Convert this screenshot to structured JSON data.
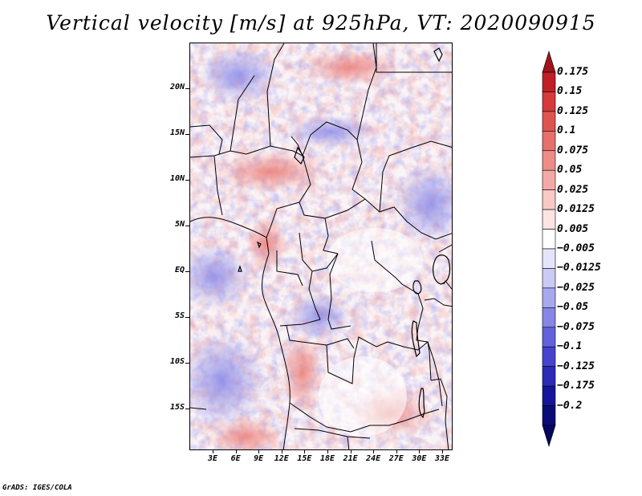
{
  "title": "Vertical velocity [m/s] at 925hPa, VT: 2020090915",
  "credit": "GrADS: IGES/COLA",
  "map": {
    "lat_labels": [
      "20N",
      "15N",
      "10N",
      "5N",
      "EQ",
      "5S",
      "10S",
      "15S"
    ],
    "lon_labels": [
      "3E",
      "6E",
      "9E",
      "12E",
      "15E",
      "18E",
      "21E",
      "24E",
      "27E",
      "30E",
      "33E"
    ]
  },
  "colorbar": {
    "labels": [
      "0.175",
      "0.15",
      "0.125",
      "0.1",
      "0.075",
      "0.05",
      "0.025",
      "0.0125",
      "0.005",
      "−0.005",
      "−0.0125",
      "−0.025",
      "−0.05",
      "−0.075",
      "−0.1",
      "−0.125",
      "−0.175",
      "−0.2"
    ],
    "colors": [
      "#a01519",
      "#c01f25",
      "#d63a3a",
      "#e0544f",
      "#e6706a",
      "#ed8c86",
      "#f3aaa6",
      "#f8c9c6",
      "#fce4e2",
      "#ffffff",
      "#e4e4fb",
      "#cacaf5",
      "#a8a8ee",
      "#8686e6",
      "#6262dc",
      "#4444cf",
      "#2b2bb8",
      "#15159a",
      "#0b0b78",
      "#060660"
    ]
  }
}
